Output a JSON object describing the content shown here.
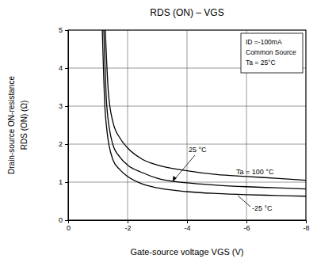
{
  "chart_data": {
    "type": "line",
    "title": "RDS (ON) – VGS",
    "xlabel": "Gate-source voltage  VGS  (V)",
    "ylabel": [
      "Drain-source ON-resistance",
      "RDS (ON) (Ω)"
    ],
    "annotations": [
      "ID =-100mA",
      "Common Source",
      "Ta = 25°C"
    ],
    "xlim": [
      0,
      -8
    ],
    "xticks": [
      0,
      -2,
      -4,
      -6,
      -8
    ],
    "ylim": [
      0,
      5
    ],
    "yticks": [
      0,
      1,
      2,
      3,
      4,
      5
    ],
    "grid": true,
    "series": [
      {
        "name": "Ta = 100 °C",
        "color": "#000000",
        "x": [
          -1.25,
          -1.35,
          -1.5,
          -1.75,
          -2,
          -2.5,
          -3,
          -4,
          -5,
          -6,
          -7,
          -8
        ],
        "values": [
          5,
          3.4,
          2.6,
          2.15,
          1.9,
          1.6,
          1.45,
          1.3,
          1.2,
          1.15,
          1.1,
          1.05
        ]
      },
      {
        "name": "25 °C",
        "color": "#000000",
        "x": [
          -1.2,
          -1.3,
          -1.5,
          -1.75,
          -2,
          -2.5,
          -3,
          -4,
          -5,
          -6,
          -7,
          -8
        ],
        "values": [
          5,
          3.0,
          2.0,
          1.65,
          1.45,
          1.25,
          1.1,
          0.98,
          0.92,
          0.88,
          0.85,
          0.82
        ]
      },
      {
        "name": "-25 °C",
        "color": "#000000",
        "x": [
          -1.15,
          -1.25,
          -1.5,
          -1.75,
          -2,
          -2.5,
          -3,
          -4,
          -5,
          -6,
          -7,
          -8
        ],
        "values": [
          5,
          2.8,
          1.6,
          1.32,
          1.15,
          0.95,
          0.85,
          0.75,
          0.7,
          0.67,
          0.65,
          0.63
        ]
      }
    ]
  }
}
